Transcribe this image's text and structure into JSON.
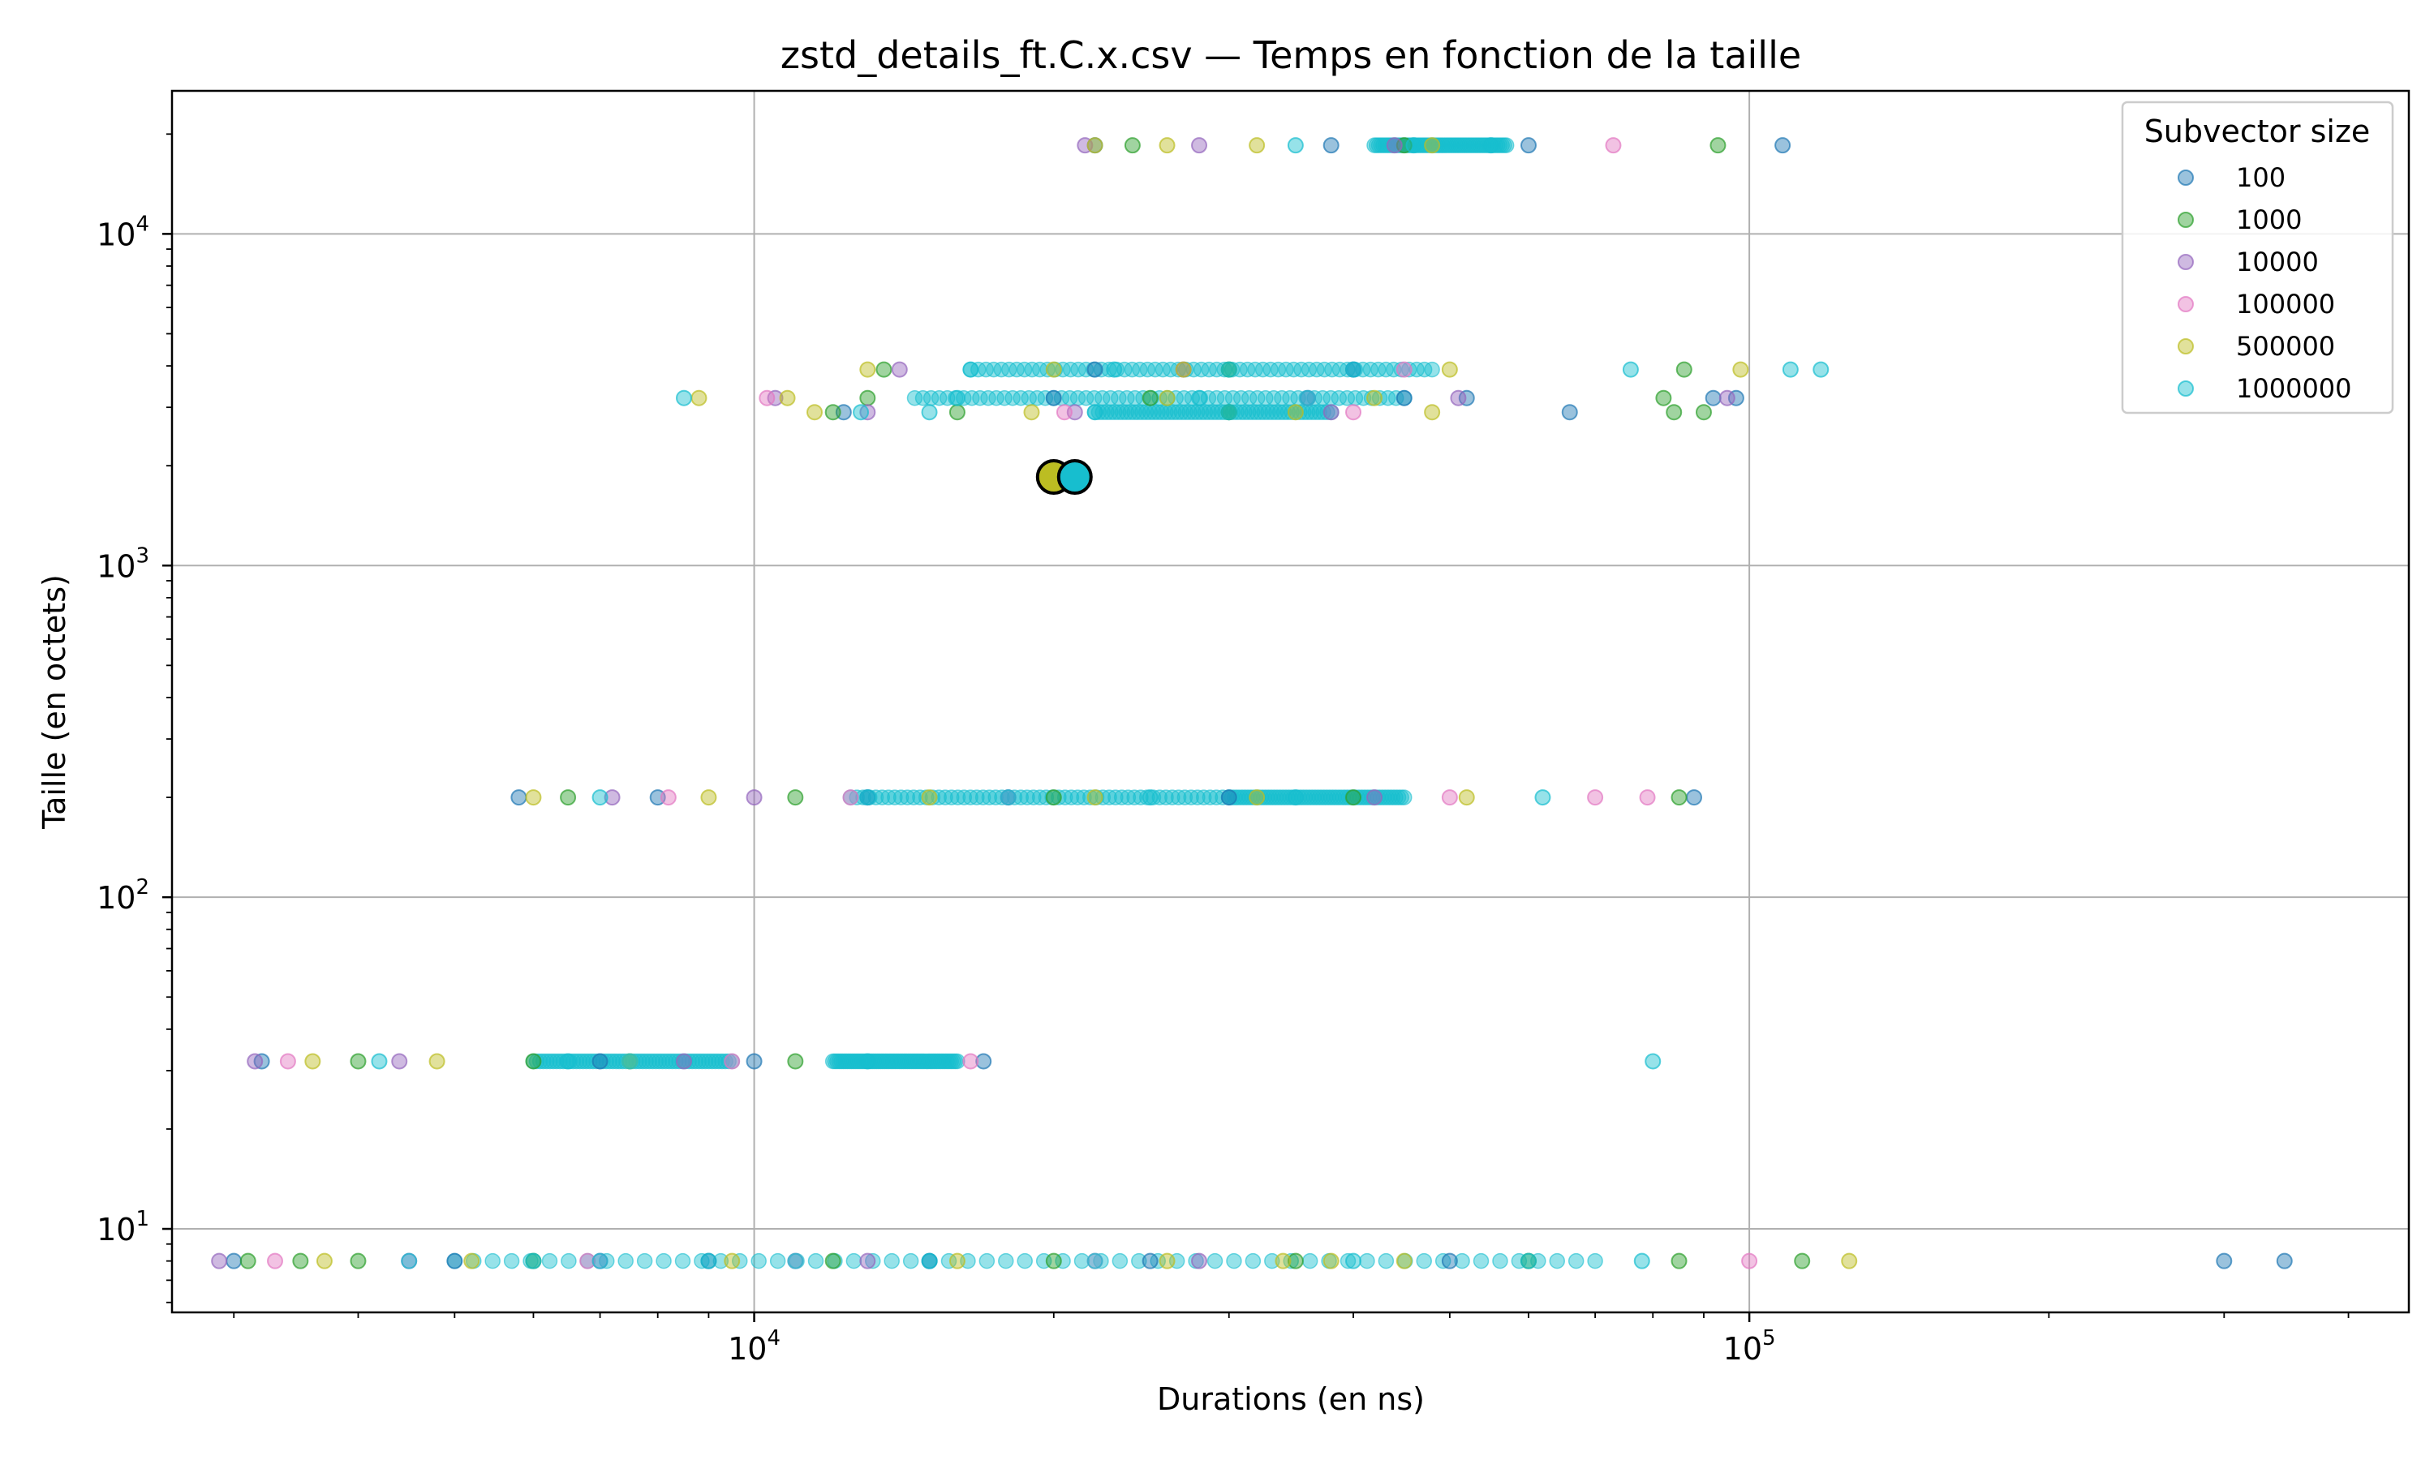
{
  "chart_data": {
    "type": "scatter",
    "title": "zstd_details_ft.C.x.csv — Temps en fonction de la taille",
    "xlabel": "Durations (en ns)",
    "ylabel": "Taille (en octets)",
    "xscale": "log",
    "yscale": "log",
    "xlim": [
      2600,
      460000
    ],
    "ylim": [
      5.6,
      27000
    ],
    "grid": true,
    "legend": {
      "title": "Subvector size",
      "placement": "top-right",
      "entries": [
        "100",
        "1000",
        "10000",
        "100000",
        "500000",
        "1000000"
      ]
    },
    "x_ticks": [
      {
        "base": "10",
        "exp": "4",
        "value": 10000
      },
      {
        "base": "10",
        "exp": "5",
        "value": 100000
      }
    ],
    "y_ticks": [
      {
        "base": "10",
        "exp": "1",
        "value": 10
      },
      {
        "base": "10",
        "exp": "2",
        "value": 100
      },
      {
        "base": "10",
        "exp": "3",
        "value": 1000
      },
      {
        "base": "10",
        "exp": "4",
        "value": 10000
      }
    ],
    "series": [
      {
        "name": "100",
        "color": "#1f77b4",
        "points": [
          [
            3000,
            8
          ],
          [
            5000,
            8
          ],
          [
            9000,
            8
          ],
          [
            15000,
            8
          ],
          [
            25000,
            8
          ],
          [
            50000,
            8
          ],
          [
            300000,
            8
          ],
          [
            345000,
            8
          ],
          [
            3200,
            32
          ],
          [
            7000,
            32
          ],
          [
            10000,
            32
          ],
          [
            17000,
            32
          ],
          [
            5800,
            200
          ],
          [
            8000,
            200
          ],
          [
            13000,
            200
          ],
          [
            30000,
            200
          ],
          [
            88000,
            200
          ],
          [
            12300,
            2900
          ],
          [
            20000,
            3200
          ],
          [
            45000,
            3200
          ],
          [
            52000,
            3200
          ],
          [
            66000,
            2900
          ],
          [
            92000,
            3200
          ],
          [
            97000,
            3200
          ],
          [
            22000,
            3900
          ],
          [
            40000,
            3900
          ],
          [
            22000,
            18500
          ],
          [
            38000,
            18500
          ],
          [
            60000,
            18500
          ],
          [
            108000,
            18500
          ]
        ]
      },
      {
        "name": "1000",
        "color": "#2ca02c",
        "points": [
          [
            3100,
            8
          ],
          [
            3500,
            8
          ],
          [
            4000,
            8
          ],
          [
            6000,
            8
          ],
          [
            12000,
            8
          ],
          [
            20000,
            8
          ],
          [
            35000,
            8
          ],
          [
            60000,
            8
          ],
          [
            85000,
            8
          ],
          [
            113000,
            8
          ],
          [
            4000,
            32
          ],
          [
            6000,
            32
          ],
          [
            11000,
            32
          ],
          [
            6500,
            200
          ],
          [
            11000,
            200
          ],
          [
            20000,
            200
          ],
          [
            40000,
            200
          ],
          [
            85000,
            200
          ],
          [
            12000,
            2900
          ],
          [
            16000,
            2900
          ],
          [
            30000,
            2900
          ],
          [
            84000,
            2900
          ],
          [
            90000,
            2900
          ],
          [
            13000,
            3200
          ],
          [
            25000,
            3200
          ],
          [
            82000,
            3200
          ],
          [
            13500,
            3900
          ],
          [
            30000,
            3900
          ],
          [
            86000,
            3900
          ],
          [
            24000,
            18500
          ],
          [
            45000,
            18500
          ],
          [
            93000,
            18500
          ]
        ]
      },
      {
        "name": "10000",
        "color": "#9467bd",
        "points": [
          [
            2900,
            8
          ],
          [
            4500,
            8
          ],
          [
            7000,
            8
          ],
          [
            13000,
            8
          ],
          [
            28000,
            8
          ],
          [
            3150,
            32
          ],
          [
            4400,
            32
          ],
          [
            8500,
            32
          ],
          [
            7200,
            200
          ],
          [
            10000,
            200
          ],
          [
            18000,
            200
          ],
          [
            42000,
            200
          ],
          [
            13000,
            2900
          ],
          [
            21000,
            2900
          ],
          [
            38000,
            2900
          ],
          [
            10500,
            3200
          ],
          [
            36000,
            3200
          ],
          [
            51000,
            3200
          ],
          [
            95000,
            3200
          ],
          [
            14000,
            3900
          ],
          [
            27000,
            3900
          ],
          [
            21500,
            18500
          ],
          [
            28000,
            18500
          ],
          [
            44000,
            18500
          ]
        ]
      },
      {
        "name": "100000",
        "color": "#e377c2",
        "points": [
          [
            3300,
            8
          ],
          [
            6800,
            8
          ],
          [
            11000,
            8
          ],
          [
            22000,
            8
          ],
          [
            100000,
            8
          ],
          [
            3400,
            32
          ],
          [
            9500,
            32
          ],
          [
            16500,
            32
          ],
          [
            8200,
            200
          ],
          [
            12500,
            200
          ],
          [
            50000,
            200
          ],
          [
            70000,
            200
          ],
          [
            79000,
            200
          ],
          [
            20500,
            2900
          ],
          [
            40000,
            2900
          ],
          [
            10300,
            3200
          ],
          [
            45000,
            3900
          ],
          [
            73000,
            18500
          ]
        ]
      },
      {
        "name": "500000",
        "color": "#bcbd22",
        "points": [
          [
            3700,
            8
          ],
          [
            5200,
            8
          ],
          [
            9500,
            8
          ],
          [
            16000,
            8
          ],
          [
            26000,
            8
          ],
          [
            34000,
            8
          ],
          [
            38000,
            8
          ],
          [
            45000,
            8
          ],
          [
            126000,
            8
          ],
          [
            3600,
            32
          ],
          [
            4800,
            32
          ],
          [
            7500,
            32
          ],
          [
            6000,
            200
          ],
          [
            9000,
            200
          ],
          [
            15000,
            200
          ],
          [
            22000,
            200
          ],
          [
            32000,
            200
          ],
          [
            52000,
            200
          ],
          [
            11500,
            2900
          ],
          [
            19000,
            2900
          ],
          [
            35000,
            2900
          ],
          [
            48000,
            2900
          ],
          [
            8800,
            3200
          ],
          [
            10800,
            3200
          ],
          [
            26000,
            3200
          ],
          [
            42000,
            3200
          ],
          [
            13000,
            3900
          ],
          [
            20000,
            3900
          ],
          [
            27000,
            3900
          ],
          [
            50000,
            3900
          ],
          [
            98000,
            3900
          ],
          [
            22000,
            18500
          ],
          [
            26000,
            18500
          ],
          [
            32000,
            18500
          ],
          [
            48000,
            18500
          ]
        ]
      },
      {
        "name": "1000000",
        "color": "#17becf",
        "points": [
          [
            4500,
            8
          ],
          [
            6000,
            8
          ],
          [
            7000,
            8
          ],
          [
            9000,
            8
          ],
          [
            11000,
            8
          ],
          [
            15000,
            8
          ],
          [
            22000,
            8
          ],
          [
            40000,
            8
          ],
          [
            60000,
            8
          ],
          [
            78000,
            8
          ],
          [
            4200,
            32
          ],
          [
            6500,
            32
          ],
          [
            7500,
            32
          ],
          [
            13000,
            32
          ],
          [
            80000,
            32
          ],
          [
            7000,
            200
          ],
          [
            13000,
            200
          ],
          [
            18000,
            200
          ],
          [
            25000,
            200
          ],
          [
            35000,
            200
          ],
          [
            62000,
            200
          ],
          [
            12800,
            2900
          ],
          [
            15000,
            2900
          ],
          [
            22000,
            2900
          ],
          [
            30000,
            2900
          ],
          [
            8500,
            3200
          ],
          [
            16000,
            3200
          ],
          [
            28000,
            3200
          ],
          [
            36000,
            3200
          ],
          [
            16500,
            3900
          ],
          [
            23000,
            3900
          ],
          [
            30000,
            3900
          ],
          [
            40000,
            3900
          ],
          [
            76000,
            3900
          ],
          [
            110000,
            3900
          ],
          [
            118000,
            3900
          ],
          [
            35000,
            18500
          ],
          [
            46000,
            18500
          ],
          [
            55000,
            18500
          ]
        ]
      }
    ],
    "bands": [
      {
        "series": "1000000",
        "y": 8,
        "x_range": [
          5000,
          70000
        ]
      },
      {
        "series": "1000000",
        "y": 32,
        "x_range": [
          6000,
          9500
        ]
      },
      {
        "series": "1000000",
        "y": 32,
        "x_range": [
          12000,
          16000
        ]
      },
      {
        "series": "1000000",
        "y": 200,
        "x_range": [
          12500,
          30000
        ]
      },
      {
        "series": "1000000",
        "y": 200,
        "x_range": [
          30000,
          45000
        ]
      },
      {
        "series": "1000000",
        "y": 2900,
        "x_range": [
          22000,
          38000
        ]
      },
      {
        "series": "1000000",
        "y": 3200,
        "x_range": [
          14500,
          45000
        ]
      },
      {
        "series": "1000000",
        "y": 3900,
        "x_range": [
          16500,
          48000
        ]
      },
      {
        "series": "1000000",
        "y": 18500,
        "x_range": [
          42000,
          57000
        ]
      }
    ],
    "highlight_points": [
      {
        "series": "500000",
        "x": 20000,
        "y": 1850
      },
      {
        "series": "1000000",
        "x": 21000,
        "y": 1850
      }
    ]
  }
}
